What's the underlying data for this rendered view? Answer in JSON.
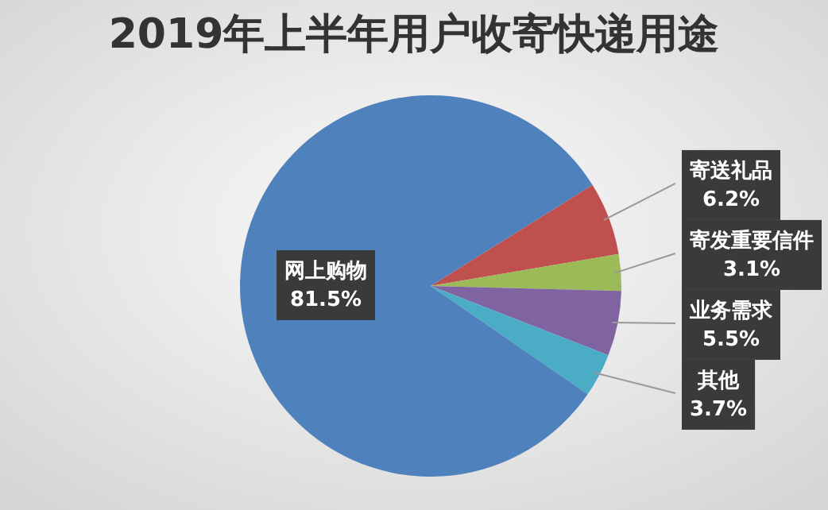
{
  "chart_data": {
    "type": "pie",
    "title": "2019年上半年用户收寄快递用途",
    "categories": [
      "寄送礼品",
      "寄发重要信件",
      "业务需求",
      "其他",
      "网上购物"
    ],
    "values": [
      6.2,
      3.1,
      5.5,
      3.7,
      81.5
    ],
    "colors": [
      "#c0504d",
      "#9bbb59",
      "#8064a2",
      "#4bacc6",
      "#4f81bd"
    ],
    "value_labels": [
      "6.2%",
      "3.1%",
      "5.5%",
      "3.7%",
      "81.5%"
    ]
  }
}
